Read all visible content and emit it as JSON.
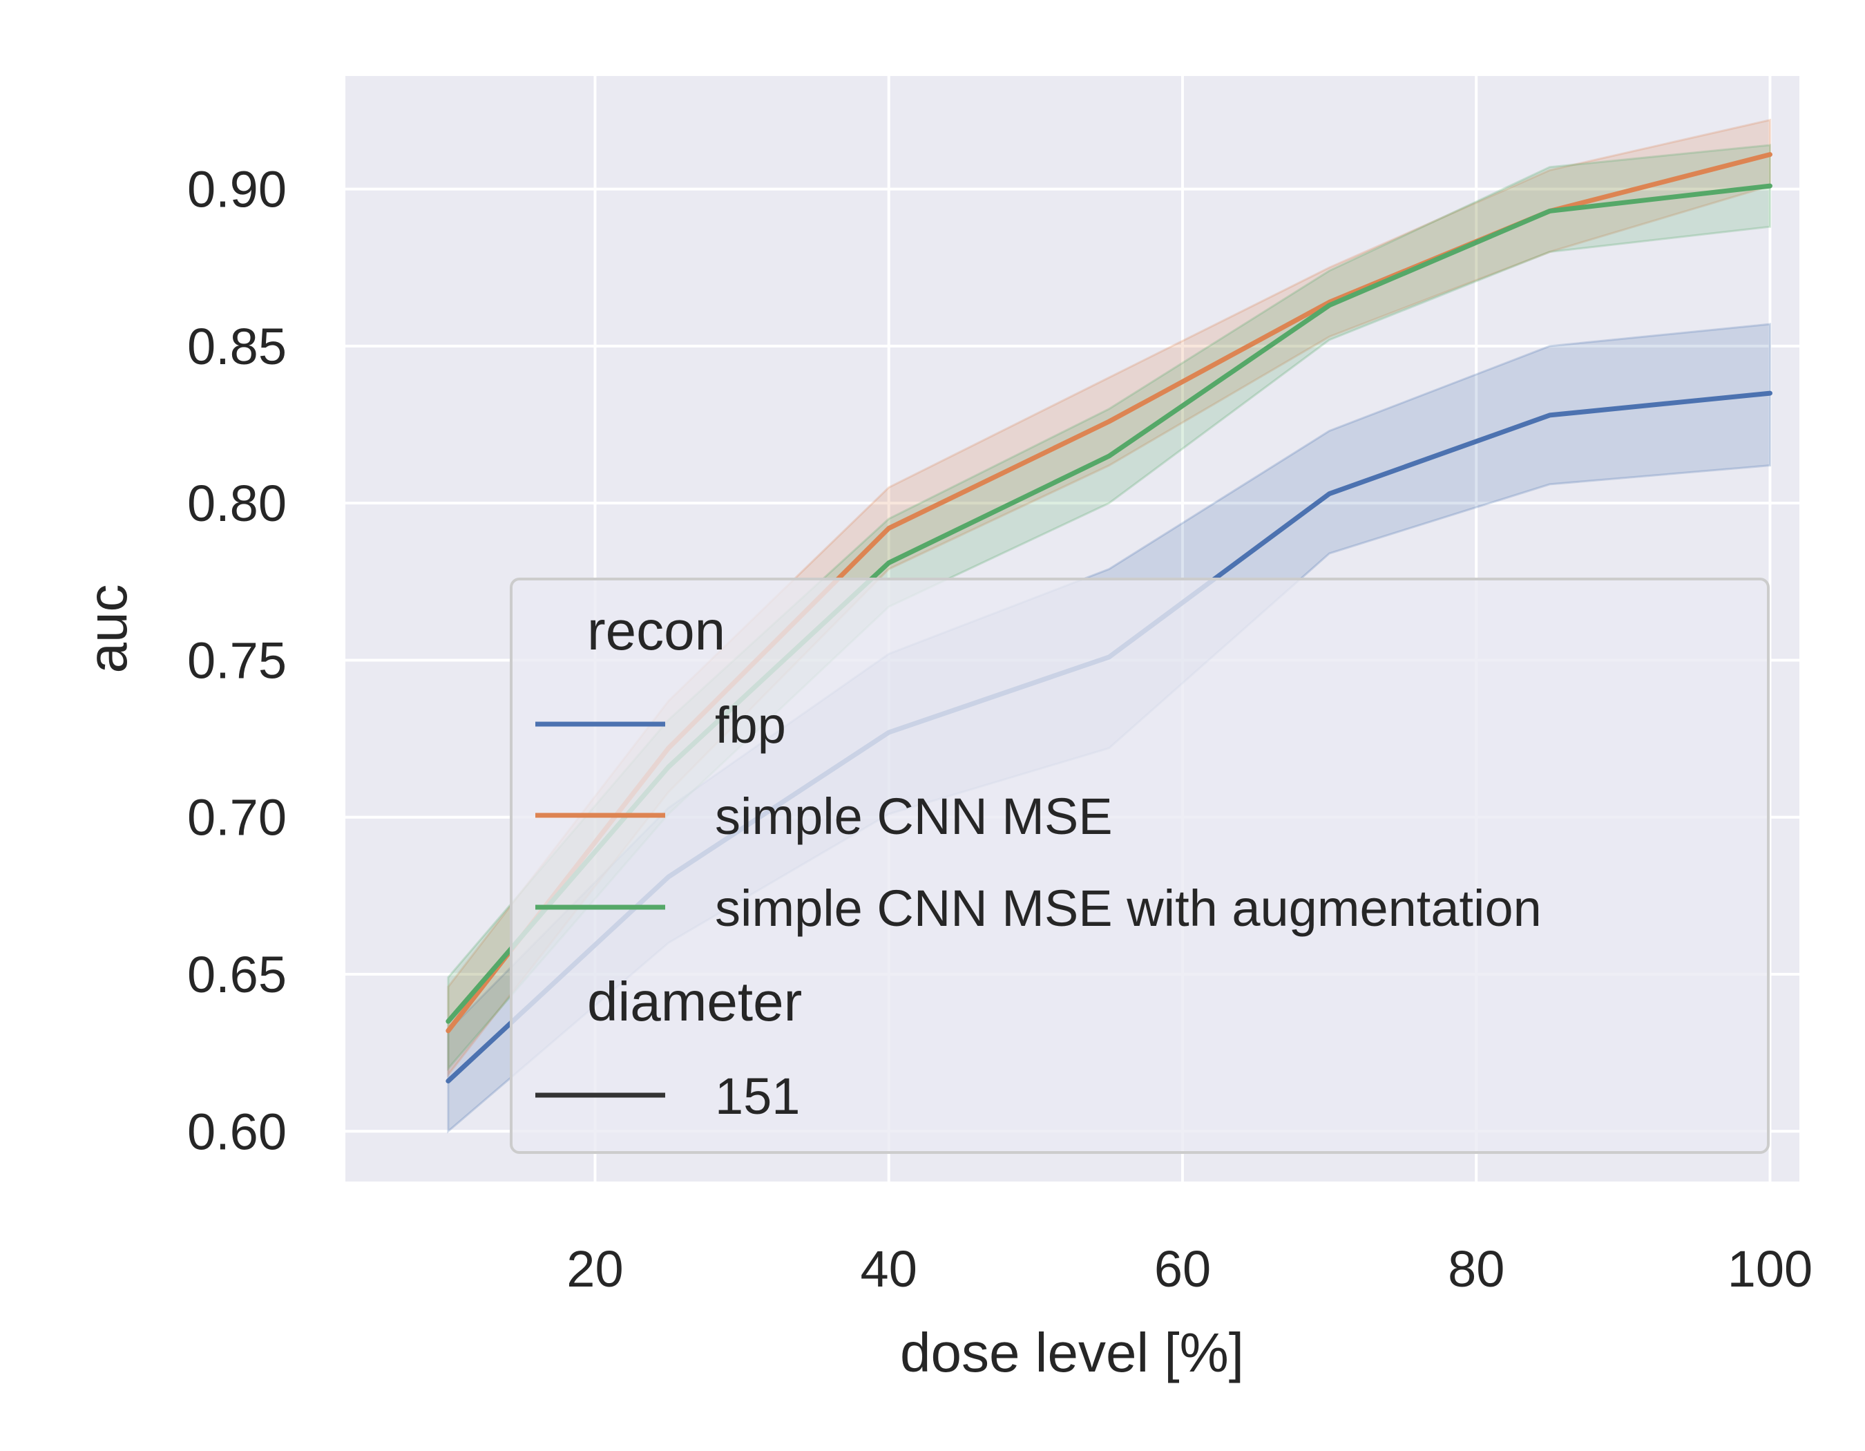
{
  "chart_data": {
    "type": "line",
    "title": "",
    "xlabel": "dose level [%]",
    "ylabel": "auc",
    "xlim": [
      3,
      102
    ],
    "ylim": [
      0.584,
      0.936
    ],
    "xticks": [
      "20",
      "40",
      "60",
      "80",
      "100"
    ],
    "yticks": [
      "0.60",
      "0.65",
      "0.70",
      "0.75",
      "0.80",
      "0.85",
      "0.90"
    ],
    "grid": true,
    "x": [
      10,
      25,
      40,
      55,
      70,
      85,
      100
    ],
    "series": [
      {
        "name": "fbp",
        "color": "#4c72b0",
        "values": [
          0.616,
          0.681,
          0.727,
          0.751,
          0.803,
          0.828,
          0.835
        ],
        "lower": [
          0.6,
          0.66,
          0.701,
          0.722,
          0.784,
          0.806,
          0.812
        ],
        "upper": [
          0.632,
          0.703,
          0.752,
          0.779,
          0.823,
          0.85,
          0.857
        ]
      },
      {
        "name": "simple CNN MSE",
        "color": "#dd8452",
        "values": [
          0.632,
          0.722,
          0.792,
          0.826,
          0.864,
          0.893,
          0.911
        ],
        "lower": [
          0.618,
          0.708,
          0.779,
          0.812,
          0.853,
          0.88,
          0.901
        ],
        "upper": [
          0.646,
          0.737,
          0.805,
          0.84,
          0.875,
          0.906,
          0.922
        ]
      },
      {
        "name": "simple CNN MSE with augmentation",
        "color": "#55a868",
        "values": [
          0.635,
          0.716,
          0.781,
          0.815,
          0.863,
          0.893,
          0.901
        ],
        "lower": [
          0.62,
          0.701,
          0.767,
          0.8,
          0.852,
          0.88,
          0.888
        ],
        "upper": [
          0.649,
          0.731,
          0.795,
          0.83,
          0.874,
          0.907,
          0.914
        ]
      }
    ],
    "legend": {
      "placement": "lower-right",
      "hue_title": "recon",
      "style_title": "diameter",
      "style_entries": [
        {
          "name": "151",
          "color": "#333333"
        }
      ]
    }
  }
}
